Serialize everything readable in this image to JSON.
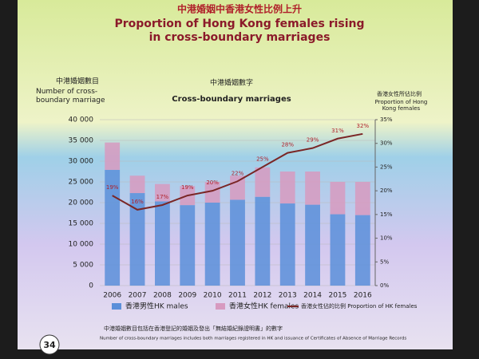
{
  "chart_data": {
    "type": "bar",
    "stacked": true,
    "title_zh": "中港婚姻中香港女性比例上升",
    "title": "Proportion of Hong Kong females rising in cross-boundary marriages",
    "subtitle_zh": "中港婚姻數字",
    "subtitle": "Cross-boundary marriages",
    "y_label_zh": "中港婚姻數目",
    "y_label": "Number of cross-boundary marriage",
    "y2_label_zh": "香港女性所佔比例",
    "y2_label": "Proportion of Hong Kong females",
    "categories": [
      "2006",
      "2007",
      "2008",
      "2009",
      "2010",
      "2011",
      "2012",
      "2013",
      "2014",
      "2015",
      "2016"
    ],
    "series": [
      {
        "name": "香港男性HK males",
        "type": "bar",
        "color": "#5b8fd9",
        "values": [
          27900,
          22300,
          20300,
          19400,
          20000,
          20700,
          21400,
          19800,
          19500,
          17200,
          17000
        ]
      },
      {
        "name": "香港女性HK females",
        "type": "bar",
        "color": "#d79ac0",
        "values": [
          6600,
          4200,
          4200,
          4600,
          5000,
          5800,
          7100,
          7700,
          8000,
          7800,
          8000
        ]
      },
      {
        "name": "香港女性佔的比例 Proportion of HK females",
        "type": "line",
        "axis": "y2",
        "color": "#7a2626",
        "values": [
          19,
          16,
          17,
          19,
          20,
          22,
          25,
          28,
          29,
          31,
          32
        ],
        "value_labels": [
          "19%",
          "16%",
          "17%",
          "19%",
          "20%",
          "22%",
          "25%",
          "28%",
          "29%",
          "31%",
          "32%"
        ]
      }
    ],
    "ylim": [
      0,
      40000
    ],
    "yticks": [
      {
        "value": 0,
        "label": "0"
      },
      {
        "value": 5000,
        "label": "5 000"
      },
      {
        "value": 10000,
        "label": "10 000"
      },
      {
        "value": 15000,
        "label": "15 000"
      },
      {
        "value": 20000,
        "label": "20 000"
      },
      {
        "value": 25000,
        "label": "25 000"
      },
      {
        "value": 30000,
        "label": "30 000"
      },
      {
        "value": 35000,
        "label": "35 000"
      },
      {
        "value": 40000,
        "label": "40 000"
      }
    ],
    "y2lim": [
      0,
      35
    ],
    "y2ticks": [
      {
        "value": 0,
        "label": "0%"
      },
      {
        "value": 5,
        "label": "5%"
      },
      {
        "value": 10,
        "label": "10%"
      },
      {
        "value": 15,
        "label": "15%"
      },
      {
        "value": 20,
        "label": "20%"
      },
      {
        "value": 25,
        "label": "25%"
      },
      {
        "value": 30,
        "label": "30%"
      },
      {
        "value": 35,
        "label": "35%"
      }
    ],
    "grid": true,
    "footnote_zh": "中港婚姻數目包括在香港登記的婚姻及發出「無結婚紀錄證明書」的數字",
    "footnote": "Number of cross-boundary marriages includes both marriages registered in HK and issuance of Certificates of Absence of Marriage Records",
    "page_number": "34"
  }
}
